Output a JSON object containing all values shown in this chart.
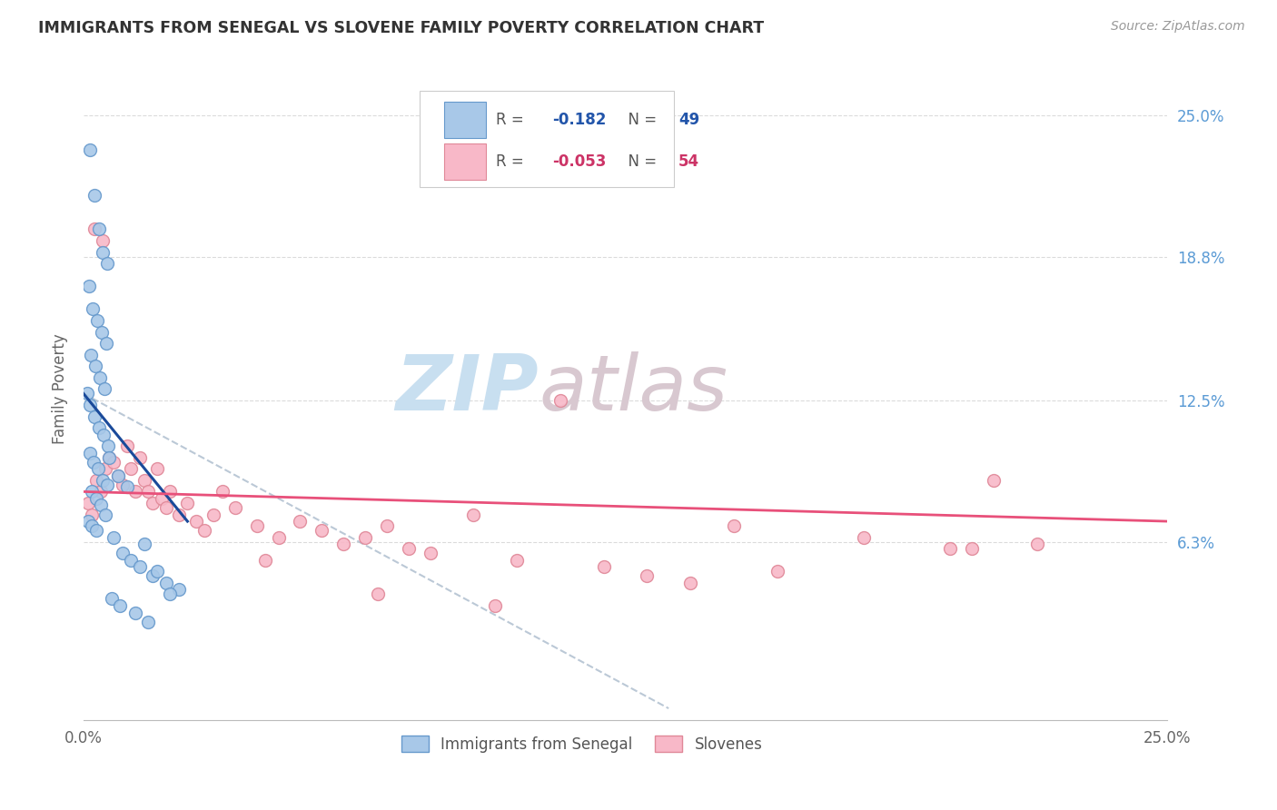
{
  "title": "IMMIGRANTS FROM SENEGAL VS SLOVENE FAMILY POVERTY CORRELATION CHART",
  "source": "Source: ZipAtlas.com",
  "ylabel": "Family Poverty",
  "ytick_labels": [
    "6.3%",
    "12.5%",
    "18.8%",
    "25.0%"
  ],
  "ytick_values": [
    6.3,
    12.5,
    18.8,
    25.0
  ],
  "xmin": 0.0,
  "xmax": 25.0,
  "ymin": -1.5,
  "ymax": 27.5,
  "senegal_x": [
    0.15,
    0.25,
    0.35,
    0.45,
    0.55,
    0.12,
    0.22,
    0.32,
    0.42,
    0.52,
    0.18,
    0.28,
    0.38,
    0.48,
    0.08,
    0.16,
    0.26,
    0.36,
    0.46,
    0.56,
    0.14,
    0.24,
    0.34,
    0.44,
    0.54,
    0.2,
    0.3,
    0.4,
    0.5,
    0.1,
    0.2,
    0.3,
    0.7,
    0.9,
    1.1,
    1.3,
    1.6,
    1.9,
    2.2,
    0.6,
    0.8,
    1.0,
    1.4,
    1.7,
    2.0,
    0.65,
    0.85,
    1.2,
    1.5
  ],
  "senegal_y": [
    23.5,
    21.5,
    20.0,
    19.0,
    18.5,
    17.5,
    16.5,
    16.0,
    15.5,
    15.0,
    14.5,
    14.0,
    13.5,
    13.0,
    12.8,
    12.3,
    11.8,
    11.3,
    11.0,
    10.5,
    10.2,
    9.8,
    9.5,
    9.0,
    8.8,
    8.5,
    8.2,
    7.9,
    7.5,
    7.2,
    7.0,
    6.8,
    6.5,
    5.8,
    5.5,
    5.2,
    4.8,
    4.5,
    4.2,
    10.0,
    9.2,
    8.7,
    6.2,
    5.0,
    4.0,
    3.8,
    3.5,
    3.2,
    2.8
  ],
  "slovene_x": [
    0.1,
    0.2,
    0.3,
    0.4,
    0.5,
    0.6,
    0.7,
    0.8,
    0.9,
    1.0,
    1.1,
    1.2,
    1.3,
    1.4,
    1.5,
    1.6,
    1.7,
    1.8,
    1.9,
    2.0,
    2.2,
    2.4,
    2.6,
    2.8,
    3.0,
    3.5,
    4.0,
    4.5,
    5.0,
    5.5,
    6.0,
    6.5,
    7.0,
    7.5,
    8.0,
    9.0,
    10.0,
    11.0,
    12.0,
    13.0,
    14.0,
    15.0,
    16.0,
    18.0,
    20.0,
    21.0,
    22.0,
    0.25,
    0.45,
    3.2,
    4.2,
    6.8,
    9.5,
    20.5
  ],
  "slovene_y": [
    8.0,
    7.5,
    9.0,
    8.5,
    9.5,
    10.0,
    9.8,
    9.2,
    8.8,
    10.5,
    9.5,
    8.5,
    10.0,
    9.0,
    8.5,
    8.0,
    9.5,
    8.2,
    7.8,
    8.5,
    7.5,
    8.0,
    7.2,
    6.8,
    7.5,
    7.8,
    7.0,
    6.5,
    7.2,
    6.8,
    6.2,
    6.5,
    7.0,
    6.0,
    5.8,
    7.5,
    5.5,
    12.5,
    5.2,
    4.8,
    4.5,
    7.0,
    5.0,
    6.5,
    6.0,
    9.0,
    6.2,
    20.0,
    19.5,
    8.5,
    5.5,
    4.0,
    3.5,
    6.0
  ],
  "blue_line_x": [
    0.0,
    2.4
  ],
  "blue_line_y": [
    12.8,
    7.2
  ],
  "pink_line_x": [
    0.0,
    25.0
  ],
  "pink_line_y": [
    8.5,
    7.2
  ],
  "dashed_line_x": [
    0.0,
    13.5
  ],
  "dashed_line_y": [
    12.8,
    -1.0
  ],
  "bg_color": "#ffffff",
  "grid_color": "#cccccc",
  "title_color": "#333333",
  "right_tick_color": "#5b9bd5",
  "senegal_dot_color": "#a8c8e8",
  "senegal_dot_edge": "#6699cc",
  "slovene_dot_color": "#f8b8c8",
  "slovene_dot_edge": "#e08898",
  "blue_line_color": "#1a4a9a",
  "pink_line_color": "#e8507a",
  "dashed_line_color": "#aabbcc",
  "watermark_zip_color": "#c8dff0",
  "watermark_atlas_color": "#d8c8d0",
  "dot_size": 100,
  "legend_R1": "-0.182",
  "legend_N1": "49",
  "legend_R2": "-0.053",
  "legend_N2": "54",
  "legend_color_blue": "#2255aa",
  "legend_color_pink": "#cc3366",
  "legend_text_color": "#555555"
}
